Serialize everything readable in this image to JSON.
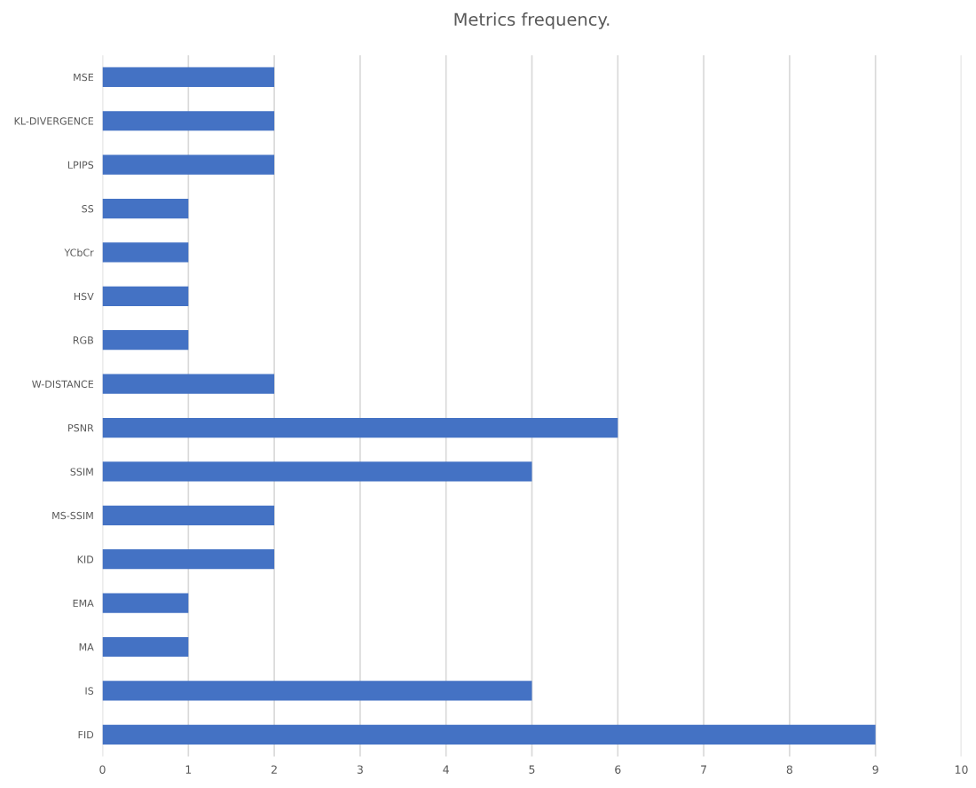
{
  "chart_data": {
    "type": "bar",
    "orientation": "horizontal",
    "title": "Metrics frequency.",
    "categories": [
      "MSE",
      "KL-DIVERGENCE",
      "LPIPS",
      "SS",
      "YCbCr",
      "HSV",
      "RGB",
      "W-DISTANCE",
      "PSNR",
      "SSIM",
      "MS-SSIM",
      "KID",
      "EMA",
      "MA",
      "IS",
      "FID"
    ],
    "values": [
      2,
      2,
      2,
      1,
      1,
      1,
      1,
      2,
      6,
      5,
      2,
      2,
      1,
      1,
      5,
      9
    ],
    "color": "#4472c4",
    "xlim": [
      0,
      10
    ],
    "xticks": [
      0,
      1,
      2,
      3,
      4,
      5,
      6,
      7,
      8,
      9,
      10
    ],
    "grid": "x",
    "legend": false
  }
}
